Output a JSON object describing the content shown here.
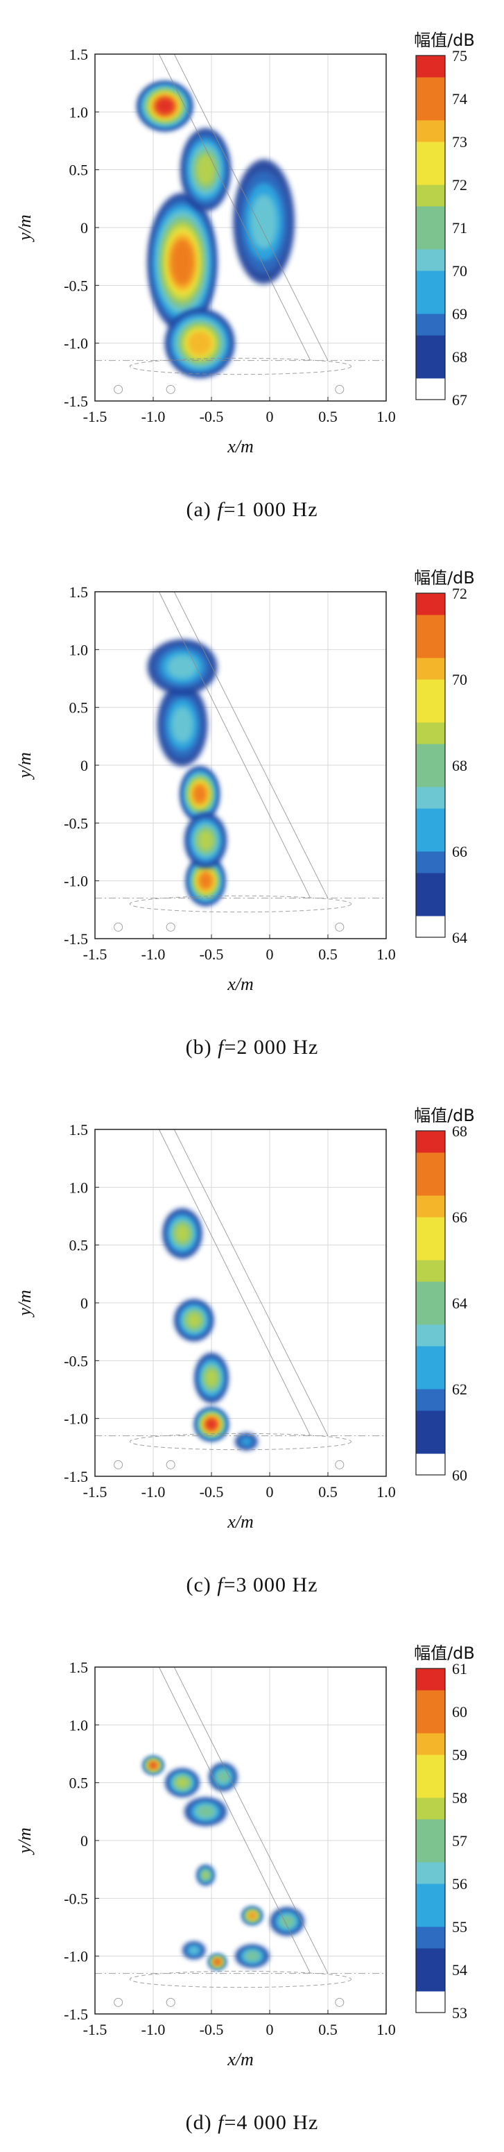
{
  "chart_data": [
    {
      "type": "heatmap",
      "caption": "(a) f=1 000 Hz",
      "caption_prefix": "(a) ",
      "caption_var": "f",
      "caption_value": "=1 000 Hz",
      "xlabel": "x/m",
      "ylabel": "y/m",
      "xlim": [
        -1.5,
        1.0
      ],
      "ylim": [
        -1.5,
        1.5
      ],
      "x_ticks": [
        "-1.5",
        "-1.0",
        "-0.5",
        "0",
        "0.5",
        "1.0"
      ],
      "y_ticks": [
        "1.5",
        "1.0",
        "0.5",
        "0",
        "-0.5",
        "-1.0",
        "-1.5"
      ],
      "colorbar_title": "幅值/dB",
      "colorbar_ticks": [
        "75",
        "74",
        "73",
        "72",
        "71",
        "70",
        "69",
        "68",
        "67"
      ],
      "colorbar_range": [
        67,
        75
      ],
      "grid": true,
      "hotspots": [
        {
          "x": -0.75,
          "y": -0.3,
          "sx": 0.25,
          "sy": 0.5,
          "level": 0.85
        },
        {
          "x": -0.9,
          "y": 1.05,
          "sx": 0.2,
          "sy": 0.18,
          "level": 0.95
        },
        {
          "x": -0.6,
          "y": -1.0,
          "sx": 0.25,
          "sy": 0.25,
          "level": 0.75
        },
        {
          "x": -0.05,
          "y": 0.05,
          "sx": 0.22,
          "sy": 0.45,
          "level": 0.4
        },
        {
          "x": -0.55,
          "y": 0.5,
          "sx": 0.18,
          "sy": 0.3,
          "level": 0.55
        }
      ]
    },
    {
      "type": "heatmap",
      "caption": "(b) f=2 000 Hz",
      "caption_prefix": "(b) ",
      "caption_var": "f",
      "caption_value": "=2 000 Hz",
      "xlabel": "x/m",
      "ylabel": "y/m",
      "xlim": [
        -1.5,
        1.0
      ],
      "ylim": [
        -1.5,
        1.5
      ],
      "x_ticks": [
        "-1.5",
        "-1.0",
        "-0.5",
        "0",
        "0.5",
        "1.0"
      ],
      "y_ticks": [
        "1.5",
        "1.0",
        "0.5",
        "0",
        "-0.5",
        "-1.0",
        "-1.5"
      ],
      "colorbar_title": "幅值/dB",
      "colorbar_ticks": [
        "72",
        "70",
        "68",
        "66",
        "64"
      ],
      "colorbar_range": [
        64,
        72
      ],
      "grid": true,
      "hotspots": [
        {
          "x": -0.6,
          "y": -0.25,
          "sx": 0.14,
          "sy": 0.2,
          "level": 0.9
        },
        {
          "x": -0.55,
          "y": -1.0,
          "sx": 0.14,
          "sy": 0.18,
          "level": 0.9
        },
        {
          "x": -0.55,
          "y": -0.65,
          "sx": 0.15,
          "sy": 0.2,
          "level": 0.55
        },
        {
          "x": -0.75,
          "y": 0.35,
          "sx": 0.18,
          "sy": 0.3,
          "level": 0.35
        },
        {
          "x": -0.75,
          "y": 0.85,
          "sx": 0.25,
          "sy": 0.2,
          "level": 0.35
        }
      ]
    },
    {
      "type": "heatmap",
      "caption": "(c) f=3 000 Hz",
      "caption_prefix": "(c) ",
      "caption_var": "f",
      "caption_value": "=3 000 Hz",
      "xlabel": "x/m",
      "ylabel": "y/m",
      "xlim": [
        -1.5,
        1.0
      ],
      "ylim": [
        -1.5,
        1.5
      ],
      "x_ticks": [
        "-1.5",
        "-1.0",
        "-0.5",
        "0",
        "0.5",
        "1.0"
      ],
      "y_ticks": [
        "1.5",
        "1.0",
        "0.5",
        "0",
        "-0.5",
        "-1.0",
        "-1.5"
      ],
      "colorbar_title": "幅值/dB",
      "colorbar_ticks": [
        "68",
        "66",
        "64",
        "62",
        "60"
      ],
      "colorbar_range": [
        60,
        68
      ],
      "grid": true,
      "hotspots": [
        {
          "x": -0.5,
          "y": -1.05,
          "sx": 0.12,
          "sy": 0.12,
          "level": 0.95
        },
        {
          "x": -0.5,
          "y": -0.65,
          "sx": 0.12,
          "sy": 0.18,
          "level": 0.55
        },
        {
          "x": -0.65,
          "y": -0.15,
          "sx": 0.14,
          "sy": 0.15,
          "level": 0.55
        },
        {
          "x": -0.75,
          "y": 0.6,
          "sx": 0.14,
          "sy": 0.18,
          "level": 0.6
        },
        {
          "x": -0.2,
          "y": -1.2,
          "sx": 0.08,
          "sy": 0.06,
          "level": 0.3
        }
      ]
    },
    {
      "type": "heatmap",
      "caption": "(d) f=4 000 Hz",
      "caption_prefix": "(d) ",
      "caption_var": "f",
      "caption_value": "=4 000 Hz",
      "xlabel": "x/m",
      "ylabel": "y/m",
      "xlim": [
        -1.5,
        1.0
      ],
      "ylim": [
        -1.5,
        1.5
      ],
      "x_ticks": [
        "-1.5",
        "-1.0",
        "-0.5",
        "0",
        "0.5",
        "1.0"
      ],
      "y_ticks": [
        "1.5",
        "1.0",
        "0.5",
        "0",
        "-0.5",
        "-1.0",
        "-1.5"
      ],
      "colorbar_title": "幅值/dB",
      "colorbar_ticks": [
        "61",
        "60",
        "59",
        "58",
        "57",
        "56",
        "55",
        "54",
        "53"
      ],
      "colorbar_range": [
        53,
        61
      ],
      "grid": true,
      "hotspots": [
        {
          "x": -1.0,
          "y": 0.65,
          "sx": 0.07,
          "sy": 0.06,
          "level": 0.95
        },
        {
          "x": -0.75,
          "y": 0.5,
          "sx": 0.12,
          "sy": 0.1,
          "level": 0.6
        },
        {
          "x": -0.55,
          "y": 0.25,
          "sx": 0.15,
          "sy": 0.1,
          "level": 0.5
        },
        {
          "x": -0.4,
          "y": 0.55,
          "sx": 0.1,
          "sy": 0.1,
          "level": 0.5
        },
        {
          "x": -0.55,
          "y": -0.3,
          "sx": 0.06,
          "sy": 0.07,
          "level": 0.6
        },
        {
          "x": -0.15,
          "y": -0.65,
          "sx": 0.07,
          "sy": 0.06,
          "level": 0.9
        },
        {
          "x": 0.15,
          "y": -0.7,
          "sx": 0.12,
          "sy": 0.1,
          "level": 0.45
        },
        {
          "x": -0.45,
          "y": -1.05,
          "sx": 0.06,
          "sy": 0.05,
          "level": 0.95
        },
        {
          "x": -0.15,
          "y": -1.0,
          "sx": 0.12,
          "sy": 0.08,
          "level": 0.5
        },
        {
          "x": -0.65,
          "y": -0.95,
          "sx": 0.08,
          "sy": 0.06,
          "level": 0.4
        }
      ]
    }
  ]
}
